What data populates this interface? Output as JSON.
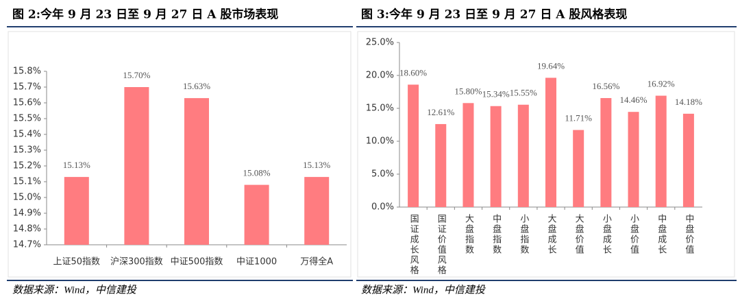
{
  "chart_data": [
    {
      "type": "bar",
      "title": "图 2:今年 9 月 23 日至 9 月 27 日 A 股市场表现",
      "categories": [
        "上证50指数",
        "沪深300指数",
        "中证500指数",
        "中证1000",
        "万得全A"
      ],
      "values": [
        15.13,
        15.7,
        15.63,
        15.08,
        15.13
      ],
      "value_labels": [
        "15.13%",
        "15.70%",
        "15.63%",
        "15.08%",
        "15.13%"
      ],
      "color": "#ff7c80",
      "ylim": [
        14.7,
        15.8
      ],
      "yticks": [
        {
          "value": 14.7,
          "label": "14.7%"
        },
        {
          "value": 14.8,
          "label": "14.8%"
        },
        {
          "value": 14.9,
          "label": "14.9%"
        },
        {
          "value": 15.0,
          "label": "15.0%"
        },
        {
          "value": 15.1,
          "label": "15.1%"
        },
        {
          "value": 15.2,
          "label": "15.2%"
        },
        {
          "value": 15.3,
          "label": "15.3%"
        },
        {
          "value": 15.4,
          "label": "15.4%"
        },
        {
          "value": 15.5,
          "label": "15.5%"
        },
        {
          "value": 15.6,
          "label": "15.6%"
        },
        {
          "value": 15.7,
          "label": "15.7%"
        },
        {
          "value": 15.8,
          "label": "15.8%"
        }
      ],
      "grid": false,
      "source": "数据来源：Wind，中信建投"
    },
    {
      "type": "bar",
      "title": "图 3:今年 9 月 23 日至 9 月 27 日 A 股风格表现",
      "categories": [
        "国证成长风格",
        "国证价值风格",
        "大盘指数",
        "中盘指数",
        "小盘指数",
        "大盘成长",
        "大盘价值",
        "小盘成长",
        "小盘价值",
        "中盘成长",
        "中盘价值"
      ],
      "values": [
        18.6,
        12.61,
        15.8,
        15.34,
        15.55,
        19.64,
        11.71,
        16.56,
        14.46,
        16.92,
        14.18
      ],
      "value_labels": [
        "18.60%",
        "12.61%",
        "15.80%",
        "15.34%",
        "15.55%",
        "19.64%",
        "11.71%",
        "16.56%",
        "14.46%",
        "16.92%",
        "14.18%"
      ],
      "color": "#ff7c80",
      "ylim": [
        0,
        25
      ],
      "yticks": [
        {
          "value": 0,
          "label": "0.0%"
        },
        {
          "value": 5,
          "label": "5.0%"
        },
        {
          "value": 10,
          "label": "10.0%"
        },
        {
          "value": 15,
          "label": "15.0%"
        },
        {
          "value": 20,
          "label": "20.0%"
        },
        {
          "value": 25,
          "label": "25.0%"
        }
      ],
      "grid": false,
      "source": "数据来源：Wind，中信建投"
    }
  ]
}
